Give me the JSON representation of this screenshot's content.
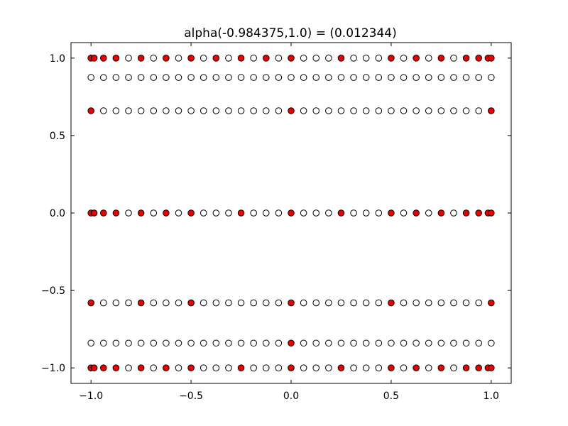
{
  "chart_data": {
    "type": "scatter",
    "title": "alpha(-0.984375,1.0) =  (0.012344)",
    "xlabel": "",
    "ylabel": "",
    "xlim": [
      -1.1,
      1.1
    ],
    "ylim": [
      -1.1,
      1.1
    ],
    "xticks": [
      -1.0,
      -0.5,
      0.0,
      0.5,
      1.0
    ],
    "xtick_labels": [
      "−1.0",
      "−0.5",
      "0.0",
      "0.5",
      "1.0"
    ],
    "yticks": [
      -1.0,
      -0.5,
      0.0,
      0.5,
      1.0
    ],
    "ytick_labels": [
      "−1.0",
      "−0.5",
      "0.0",
      "0.5",
      "1.0"
    ],
    "grid": false,
    "legend": false,
    "colors": {
      "filled": "#ee0000",
      "hollow": "#ffffff",
      "edge": "#000000"
    },
    "series": [
      {
        "fill": "#ee0000",
        "rows": [
          {
            "y": 1.0,
            "x": [
              -1.0,
              -0.984375,
              -0.9375,
              -0.875,
              -0.75,
              -0.625,
              -0.5,
              -0.375,
              -0.25,
              -0.125,
              0.0,
              0.25,
              0.5,
              0.625,
              0.75,
              0.875,
              0.9375,
              0.984375,
              1.0
            ]
          },
          {
            "y": 0.66,
            "x": [
              -1.0,
              0.0,
              1.0
            ]
          },
          {
            "y": 0.0,
            "x": [
              -1.0,
              -0.984375,
              -0.9375,
              -0.875,
              -0.75,
              -0.625,
              -0.5,
              -0.25,
              0.0,
              0.25,
              0.5,
              0.625,
              0.75,
              0.875,
              0.9375,
              0.984375,
              1.0
            ]
          },
          {
            "y": -0.58,
            "x": [
              -1.0,
              -0.75,
              -0.5,
              0.0,
              0.5,
              1.0
            ]
          },
          {
            "y": -0.84,
            "x": [
              0.0
            ]
          },
          {
            "y": -1.0,
            "x": [
              -1.0,
              -0.984375,
              -0.9375,
              -0.875,
              -0.75,
              -0.625,
              -0.5,
              -0.25,
              0.0,
              0.25,
              0.5,
              0.625,
              0.75,
              0.875,
              0.9375,
              0.984375,
              1.0
            ]
          }
        ]
      },
      {
        "fill": "#ffffff",
        "rows": [
          {
            "y": 1.0,
            "x": [
              -0.8125,
              -0.6875,
              -0.5625,
              -0.4375,
              -0.3125,
              -0.1875,
              -0.0625,
              0.0625,
              0.125,
              0.1875,
              0.3125,
              0.375,
              0.4375,
              0.5625,
              0.6875,
              0.8125
            ]
          },
          {
            "y": 0.875,
            "x": [
              -1.0,
              -0.9375,
              -0.875,
              -0.8125,
              -0.75,
              -0.6875,
              -0.625,
              -0.5625,
              -0.5,
              -0.4375,
              -0.375,
              -0.3125,
              -0.25,
              -0.1875,
              -0.125,
              -0.0625,
              0.0,
              0.0625,
              0.125,
              0.1875,
              0.25,
              0.3125,
              0.375,
              0.4375,
              0.5,
              0.5625,
              0.625,
              0.6875,
              0.75,
              0.8125,
              0.875,
              0.9375,
              1.0
            ]
          },
          {
            "y": 0.66,
            "x": [
              -0.9375,
              -0.875,
              -0.8125,
              -0.75,
              -0.6875,
              -0.625,
              -0.5625,
              -0.5,
              -0.4375,
              -0.375,
              -0.3125,
              -0.25,
              -0.1875,
              -0.125,
              -0.0625,
              0.0625,
              0.125,
              0.1875,
              0.25,
              0.3125,
              0.375,
              0.4375,
              0.5,
              0.5625,
              0.625,
              0.6875,
              0.75,
              0.8125,
              0.875,
              0.9375
            ]
          },
          {
            "y": 0.0,
            "x": [
              -0.8125,
              -0.6875,
              -0.5625,
              -0.4375,
              -0.375,
              -0.3125,
              -0.1875,
              -0.125,
              -0.0625,
              0.0625,
              0.125,
              0.1875,
              0.3125,
              0.375,
              0.4375,
              0.5625,
              0.6875,
              0.8125
            ]
          },
          {
            "y": -0.58,
            "x": [
              -0.9375,
              -0.875,
              -0.8125,
              -0.6875,
              -0.625,
              -0.5625,
              -0.4375,
              -0.375,
              -0.3125,
              -0.25,
              -0.1875,
              -0.125,
              -0.0625,
              0.0625,
              0.125,
              0.1875,
              0.25,
              0.3125,
              0.375,
              0.4375,
              0.5625,
              0.625,
              0.6875,
              0.75,
              0.8125,
              0.875,
              0.9375
            ]
          },
          {
            "y": -0.84,
            "x": [
              -1.0,
              -0.9375,
              -0.875,
              -0.8125,
              -0.75,
              -0.6875,
              -0.625,
              -0.5625,
              -0.5,
              -0.4375,
              -0.375,
              -0.3125,
              -0.25,
              -0.1875,
              -0.125,
              -0.0625,
              0.0625,
              0.125,
              0.1875,
              0.25,
              0.3125,
              0.375,
              0.4375,
              0.5,
              0.5625,
              0.625,
              0.6875,
              0.75,
              0.8125,
              0.875,
              0.9375,
              1.0
            ]
          },
          {
            "y": -1.0,
            "x": [
              -0.8125,
              -0.6875,
              -0.5625,
              -0.4375,
              -0.375,
              -0.3125,
              -0.1875,
              -0.125,
              -0.0625,
              0.0625,
              0.125,
              0.1875,
              0.3125,
              0.375,
              0.4375,
              0.5625,
              0.6875,
              0.8125
            ]
          }
        ]
      }
    ]
  }
}
